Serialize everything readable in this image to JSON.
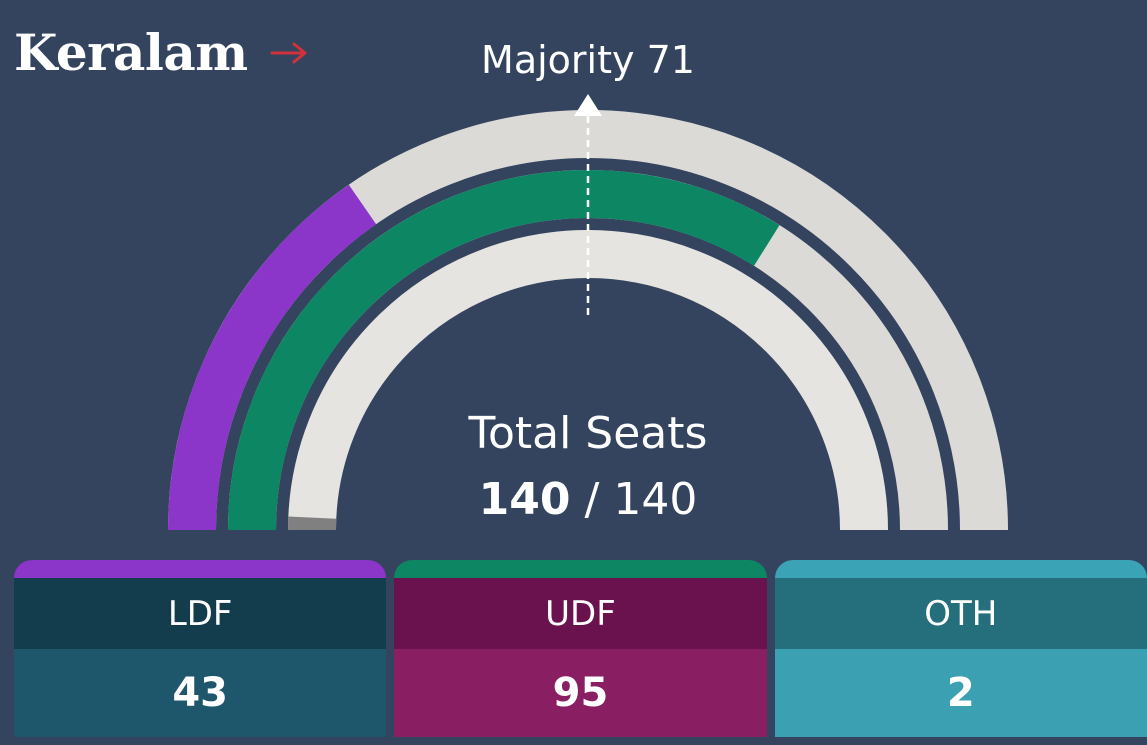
{
  "header": {
    "state": "Keralam",
    "majority_label": "Majority 71"
  },
  "total": {
    "label": "Total Seats",
    "won": "140",
    "separator": "/",
    "total": "140"
  },
  "chart_data": {
    "type": "gauge",
    "title": "Total Seats",
    "total_seats": 140,
    "majority": 71,
    "series": [
      {
        "name": "LDF",
        "values": [
          43
        ]
      },
      {
        "name": "UDF",
        "values": [
          95
        ]
      },
      {
        "name": "OTH",
        "values": [
          2
        ]
      }
    ]
  },
  "colors": {
    "background": "#34445f",
    "ldf": "#8b35c9",
    "udf": "#0c8663",
    "oth": "#808080",
    "track": "#dcdad6",
    "track_inner": "#e6e4e0",
    "arrow": "#d0313a",
    "ldf_card_top": "#8b35c9",
    "ldf_card_head": "#133d4c",
    "ldf_card_body": "#1e566c",
    "udf_card_top": "#0c8663",
    "udf_card_head": "#6a124e",
    "udf_card_body": "#8a1e63",
    "oth_card_top": "#3aa3b5",
    "oth_card_head": "#256f7c",
    "oth_card_body": "#3ba0b2"
  },
  "parties": [
    {
      "key": "ldf",
      "name": "LDF",
      "seats": "43"
    },
    {
      "key": "udf",
      "name": "UDF",
      "seats": "95"
    },
    {
      "key": "oth",
      "name": "OTH",
      "seats": "2"
    }
  ]
}
